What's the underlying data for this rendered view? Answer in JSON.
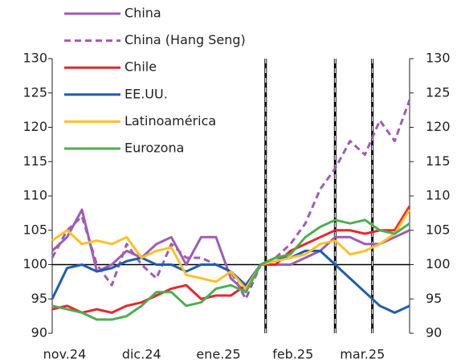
{
  "chart_data": {
    "type": "line",
    "x": [
      0,
      6,
      12,
      18,
      24,
      30,
      36,
      42,
      48,
      54,
      60,
      66,
      72,
      78,
      84,
      90,
      96,
      102,
      108,
      114,
      120,
      126,
      132,
      138,
      144
    ],
    "xlim": [
      0,
      144
    ],
    "xticks": [
      {
        "value": 5,
        "label": "nov.24"
      },
      {
        "value": 36,
        "label": "dic.24"
      },
      {
        "value": 67,
        "label": "ene.25"
      },
      {
        "value": 97,
        "label": "feb.25"
      },
      {
        "value": 125,
        "label": "mar.25"
      }
    ],
    "ylim": [
      90,
      130
    ],
    "yticks": [
      90,
      95,
      100,
      105,
      110,
      115,
      120,
      125,
      130
    ],
    "y2lim": [
      90,
      130
    ],
    "y2ticks": [
      90,
      95,
      100,
      105,
      110,
      115,
      120,
      125,
      130
    ],
    "hline": 100,
    "vlines": [
      86,
      114,
      129
    ],
    "series": [
      {
        "name": "China",
        "color": "#9e5cb4",
        "dash": false,
        "values": [
          102,
          104,
          108,
          99,
          100,
          102,
          101,
          103,
          104,
          100,
          104,
          104,
          98,
          96,
          100,
          100,
          100,
          101,
          102,
          104,
          104,
          103,
          103,
          104,
          105
        ]
      },
      {
        "name": "China (Hang Seng)",
        "color": "#9e5cb4",
        "dash": true,
        "values": [
          101,
          105,
          107,
          100,
          97,
          103,
          100,
          98,
          103,
          101,
          101,
          100,
          99,
          95,
          100,
          101,
          103,
          106,
          111,
          114,
          118,
          116,
          121,
          118,
          124
        ]
      },
      {
        "name": "Chile",
        "color": "#e8262b",
        "dash": false,
        "values": [
          93.5,
          94,
          93,
          93.5,
          93,
          94,
          94.5,
          95.5,
          96.5,
          97,
          95,
          95.5,
          95.5,
          97,
          100,
          100,
          102,
          103,
          104,
          105,
          105,
          104.5,
          105,
          105,
          108.5
        ]
      },
      {
        "name": "EE.UU.",
        "color": "#1f5cb0",
        "dash": false,
        "values": [
          95,
          99.5,
          100,
          99,
          99.5,
          100.5,
          101,
          100,
          100,
          99,
          100,
          100,
          99,
          97,
          100,
          101,
          101,
          102,
          102,
          100,
          98,
          96,
          94,
          93,
          94
        ]
      },
      {
        "name": "Latinoamérica",
        "color": "#ffc025",
        "dash": false,
        "values": [
          103.5,
          105,
          103,
          103.5,
          103,
          104,
          101,
          102,
          102.5,
          98.5,
          98,
          97.5,
          99,
          96.5,
          100,
          100.5,
          101,
          101.5,
          103,
          103.5,
          101.5,
          102,
          103,
          104.5,
          108
        ]
      },
      {
        "name": "Eurozona",
        "color": "#4caf50",
        "dash": false,
        "values": [
          94,
          93.5,
          93,
          92,
          92,
          92.5,
          94,
          96,
          96,
          94,
          94.5,
          96.5,
          97,
          96,
          100,
          101,
          101.5,
          104,
          105.5,
          106.5,
          106,
          106.5,
          105,
          104.5,
          106
        ]
      }
    ]
  }
}
